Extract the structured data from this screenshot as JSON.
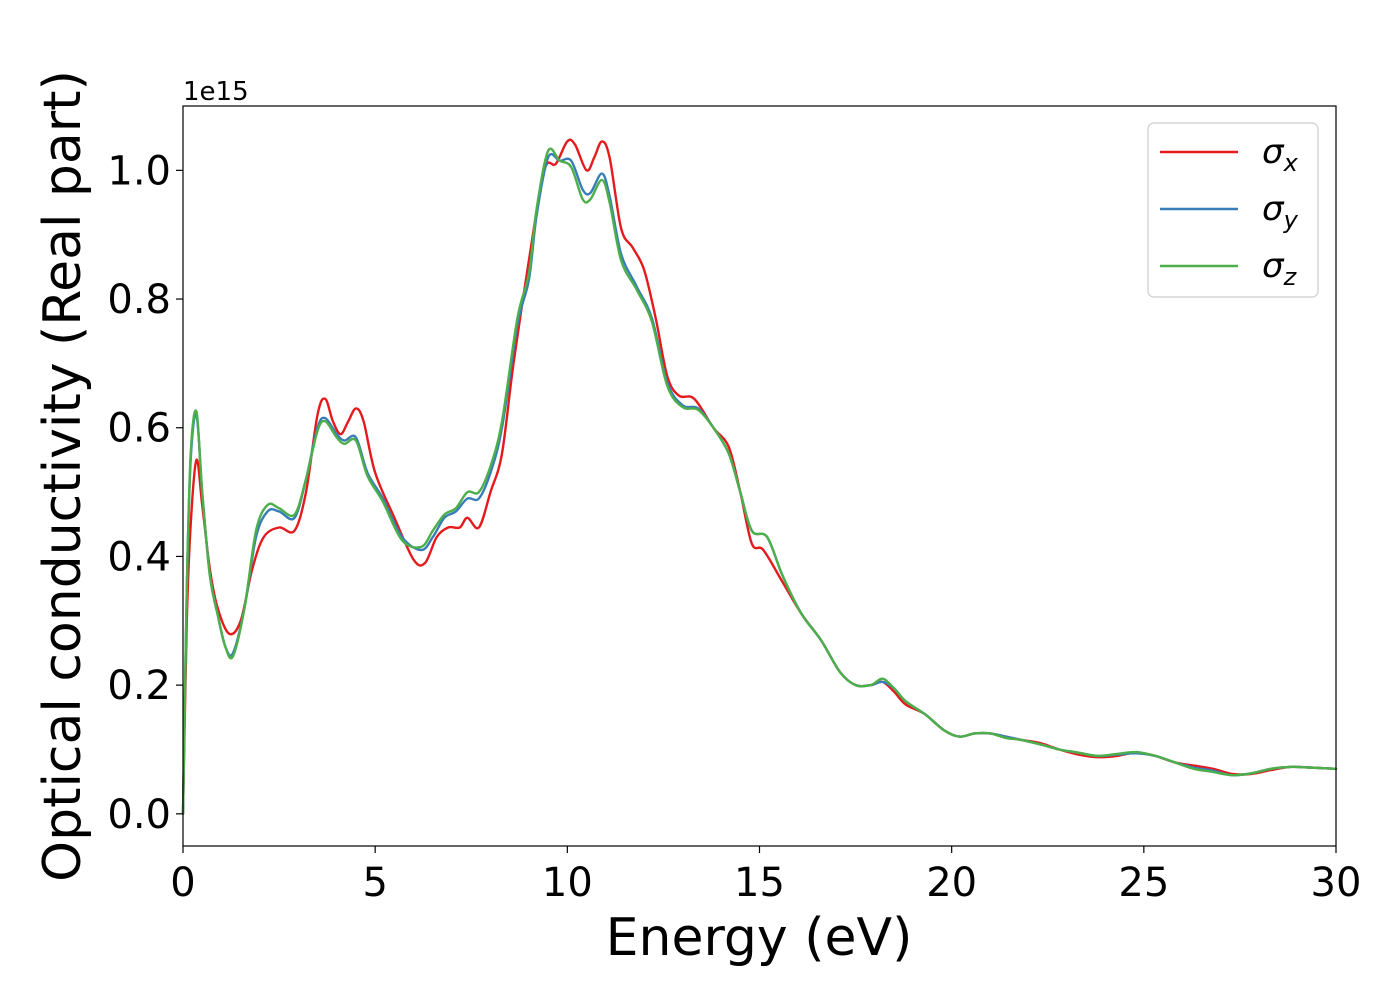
{
  "chart_data": {
    "type": "line",
    "xlabel": "Energy (eV)",
    "ylabel": "Optical conductivity (Real part)",
    "y_offset_label": "1e15",
    "xlim": [
      0,
      30
    ],
    "ylim": [
      -0.05,
      1.1
    ],
    "xticks": [
      0,
      5,
      10,
      15,
      20,
      25,
      30
    ],
    "yticks": [
      0.0,
      0.2,
      0.4,
      0.6,
      0.8,
      1.0
    ],
    "legend_position": "top-right",
    "grid": false,
    "series": [
      {
        "name": "σx",
        "symbol": "σ",
        "subscript": "x",
        "color": "#e41a1c",
        "points": [
          [
            0,
            0
          ],
          [
            0.1,
            0.3
          ],
          [
            0.2,
            0.45
          ],
          [
            0.35,
            0.55
          ],
          [
            0.5,
            0.48
          ],
          [
            0.7,
            0.38
          ],
          [
            0.9,
            0.32
          ],
          [
            1.2,
            0.28
          ],
          [
            1.5,
            0.3
          ],
          [
            1.8,
            0.38
          ],
          [
            2.1,
            0.43
          ],
          [
            2.5,
            0.445
          ],
          [
            2.9,
            0.44
          ],
          [
            3.2,
            0.5
          ],
          [
            3.5,
            0.62
          ],
          [
            3.7,
            0.645
          ],
          [
            3.9,
            0.61
          ],
          [
            4.1,
            0.59
          ],
          [
            4.3,
            0.61
          ],
          [
            4.5,
            0.63
          ],
          [
            4.7,
            0.61
          ],
          [
            5.0,
            0.53
          ],
          [
            5.5,
            0.46
          ],
          [
            6.0,
            0.395
          ],
          [
            6.3,
            0.39
          ],
          [
            6.6,
            0.43
          ],
          [
            6.9,
            0.445
          ],
          [
            7.2,
            0.445
          ],
          [
            7.4,
            0.46
          ],
          [
            7.7,
            0.445
          ],
          [
            8.0,
            0.5
          ],
          [
            8.3,
            0.56
          ],
          [
            8.6,
            0.7
          ],
          [
            9.0,
            0.86
          ],
          [
            9.4,
            1.0
          ],
          [
            9.7,
            1.01
          ],
          [
            10.0,
            1.045
          ],
          [
            10.2,
            1.04
          ],
          [
            10.5,
            1.0
          ],
          [
            10.7,
            1.02
          ],
          [
            10.9,
            1.045
          ],
          [
            11.1,
            1.02
          ],
          [
            11.4,
            0.91
          ],
          [
            11.7,
            0.88
          ],
          [
            12.0,
            0.845
          ],
          [
            12.3,
            0.77
          ],
          [
            12.6,
            0.68
          ],
          [
            12.9,
            0.65
          ],
          [
            13.3,
            0.645
          ],
          [
            13.8,
            0.6
          ],
          [
            14.2,
            0.57
          ],
          [
            14.5,
            0.5
          ],
          [
            14.8,
            0.42
          ],
          [
            15.1,
            0.41
          ],
          [
            15.6,
            0.36
          ],
          [
            16.1,
            0.31
          ],
          [
            16.6,
            0.27
          ],
          [
            17.1,
            0.22
          ],
          [
            17.5,
            0.2
          ],
          [
            17.9,
            0.2
          ],
          [
            18.2,
            0.205
          ],
          [
            18.5,
            0.19
          ],
          [
            18.8,
            0.17
          ],
          [
            19.3,
            0.155
          ],
          [
            19.8,
            0.13
          ],
          [
            20.2,
            0.12
          ],
          [
            20.6,
            0.125
          ],
          [
            21.0,
            0.125
          ],
          [
            21.4,
            0.12
          ],
          [
            21.8,
            0.115
          ],
          [
            22.3,
            0.11
          ],
          [
            22.8,
            0.1
          ],
          [
            23.3,
            0.092
          ],
          [
            23.8,
            0.088
          ],
          [
            24.3,
            0.09
          ],
          [
            24.8,
            0.095
          ],
          [
            25.3,
            0.09
          ],
          [
            25.8,
            0.08
          ],
          [
            26.3,
            0.075
          ],
          [
            26.8,
            0.07
          ],
          [
            27.3,
            0.062
          ],
          [
            27.8,
            0.062
          ],
          [
            28.3,
            0.068
          ],
          [
            28.8,
            0.073
          ],
          [
            29.3,
            0.072
          ],
          [
            30.0,
            0.07
          ]
        ]
      },
      {
        "name": "σy",
        "symbol": "σ",
        "subscript": "y",
        "color": "#377eb8",
        "points": [
          [
            0,
            0
          ],
          [
            0.1,
            0.35
          ],
          [
            0.2,
            0.55
          ],
          [
            0.35,
            0.62
          ],
          [
            0.5,
            0.5
          ],
          [
            0.7,
            0.37
          ],
          [
            0.9,
            0.31
          ],
          [
            1.1,
            0.26
          ],
          [
            1.3,
            0.25
          ],
          [
            1.6,
            0.32
          ],
          [
            1.9,
            0.43
          ],
          [
            2.2,
            0.47
          ],
          [
            2.5,
            0.47
          ],
          [
            2.9,
            0.46
          ],
          [
            3.2,
            0.52
          ],
          [
            3.5,
            0.6
          ],
          [
            3.7,
            0.615
          ],
          [
            4.0,
            0.59
          ],
          [
            4.2,
            0.58
          ],
          [
            4.5,
            0.585
          ],
          [
            4.8,
            0.53
          ],
          [
            5.2,
            0.49
          ],
          [
            5.7,
            0.43
          ],
          [
            6.2,
            0.41
          ],
          [
            6.5,
            0.43
          ],
          [
            6.8,
            0.46
          ],
          [
            7.1,
            0.47
          ],
          [
            7.4,
            0.49
          ],
          [
            7.7,
            0.49
          ],
          [
            8.0,
            0.53
          ],
          [
            8.3,
            0.6
          ],
          [
            8.7,
            0.76
          ],
          [
            9.0,
            0.83
          ],
          [
            9.2,
            0.93
          ],
          [
            9.5,
            1.02
          ],
          [
            9.8,
            1.015
          ],
          [
            10.1,
            1.015
          ],
          [
            10.4,
            0.97
          ],
          [
            10.6,
            0.965
          ],
          [
            10.9,
            0.995
          ],
          [
            11.1,
            0.96
          ],
          [
            11.4,
            0.87
          ],
          [
            11.8,
            0.82
          ],
          [
            12.2,
            0.77
          ],
          [
            12.6,
            0.67
          ],
          [
            13.0,
            0.635
          ],
          [
            13.4,
            0.63
          ],
          [
            13.8,
            0.6
          ],
          [
            14.2,
            0.56
          ],
          [
            14.5,
            0.5
          ],
          [
            14.8,
            0.44
          ],
          [
            15.2,
            0.43
          ],
          [
            15.6,
            0.37
          ],
          [
            16.1,
            0.31
          ],
          [
            16.6,
            0.27
          ],
          [
            17.1,
            0.22
          ],
          [
            17.5,
            0.2
          ],
          [
            17.9,
            0.2
          ],
          [
            18.2,
            0.205
          ],
          [
            18.5,
            0.195
          ],
          [
            18.8,
            0.175
          ],
          [
            19.3,
            0.155
          ],
          [
            19.8,
            0.13
          ],
          [
            20.2,
            0.12
          ],
          [
            20.6,
            0.125
          ],
          [
            21.0,
            0.125
          ],
          [
            21.4,
            0.12
          ],
          [
            21.8,
            0.115
          ],
          [
            22.3,
            0.108
          ],
          [
            22.8,
            0.1
          ],
          [
            23.3,
            0.095
          ],
          [
            23.8,
            0.09
          ],
          [
            24.3,
            0.092
          ],
          [
            24.8,
            0.094
          ],
          [
            25.3,
            0.09
          ],
          [
            25.8,
            0.08
          ],
          [
            26.3,
            0.072
          ],
          [
            26.8,
            0.067
          ],
          [
            27.3,
            0.06
          ],
          [
            27.8,
            0.063
          ],
          [
            28.3,
            0.07
          ],
          [
            28.8,
            0.073
          ],
          [
            29.3,
            0.072
          ],
          [
            30.0,
            0.07
          ]
        ]
      },
      {
        "name": "σz",
        "symbol": "σ",
        "subscript": "z",
        "color": "#4daf4a",
        "points": [
          [
            0,
            0
          ],
          [
            0.1,
            0.35
          ],
          [
            0.2,
            0.56
          ],
          [
            0.35,
            0.625
          ],
          [
            0.5,
            0.5
          ],
          [
            0.7,
            0.37
          ],
          [
            0.9,
            0.31
          ],
          [
            1.1,
            0.26
          ],
          [
            1.3,
            0.245
          ],
          [
            1.6,
            0.32
          ],
          [
            1.9,
            0.44
          ],
          [
            2.2,
            0.48
          ],
          [
            2.5,
            0.475
          ],
          [
            2.9,
            0.465
          ],
          [
            3.2,
            0.52
          ],
          [
            3.5,
            0.595
          ],
          [
            3.7,
            0.61
          ],
          [
            4.0,
            0.585
          ],
          [
            4.2,
            0.575
          ],
          [
            4.5,
            0.58
          ],
          [
            4.8,
            0.525
          ],
          [
            5.2,
            0.485
          ],
          [
            5.7,
            0.425
          ],
          [
            6.2,
            0.415
          ],
          [
            6.5,
            0.44
          ],
          [
            6.8,
            0.465
          ],
          [
            7.1,
            0.475
          ],
          [
            7.4,
            0.5
          ],
          [
            7.7,
            0.5
          ],
          [
            8.0,
            0.54
          ],
          [
            8.3,
            0.61
          ],
          [
            8.7,
            0.77
          ],
          [
            9.0,
            0.84
          ],
          [
            9.2,
            0.94
          ],
          [
            9.5,
            1.03
          ],
          [
            9.8,
            1.015
          ],
          [
            10.1,
            1.005
          ],
          [
            10.4,
            0.955
          ],
          [
            10.6,
            0.955
          ],
          [
            10.9,
            0.985
          ],
          [
            11.1,
            0.95
          ],
          [
            11.4,
            0.86
          ],
          [
            11.8,
            0.815
          ],
          [
            12.2,
            0.765
          ],
          [
            12.6,
            0.665
          ],
          [
            13.0,
            0.632
          ],
          [
            13.4,
            0.628
          ],
          [
            13.8,
            0.6
          ],
          [
            14.2,
            0.56
          ],
          [
            14.5,
            0.5
          ],
          [
            14.8,
            0.44
          ],
          [
            15.2,
            0.43
          ],
          [
            15.6,
            0.37
          ],
          [
            16.1,
            0.31
          ],
          [
            16.6,
            0.27
          ],
          [
            17.1,
            0.22
          ],
          [
            17.5,
            0.2
          ],
          [
            17.9,
            0.2
          ],
          [
            18.2,
            0.21
          ],
          [
            18.5,
            0.195
          ],
          [
            18.8,
            0.175
          ],
          [
            19.3,
            0.155
          ],
          [
            19.8,
            0.13
          ],
          [
            20.2,
            0.12
          ],
          [
            20.6,
            0.125
          ],
          [
            21.0,
            0.125
          ],
          [
            21.4,
            0.118
          ],
          [
            21.8,
            0.115
          ],
          [
            22.3,
            0.108
          ],
          [
            22.8,
            0.1
          ],
          [
            23.3,
            0.095
          ],
          [
            23.8,
            0.09
          ],
          [
            24.3,
            0.093
          ],
          [
            24.8,
            0.096
          ],
          [
            25.3,
            0.09
          ],
          [
            25.8,
            0.08
          ],
          [
            26.3,
            0.07
          ],
          [
            26.8,
            0.065
          ],
          [
            27.3,
            0.06
          ],
          [
            27.8,
            0.063
          ],
          [
            28.3,
            0.07
          ],
          [
            28.8,
            0.073
          ],
          [
            29.3,
            0.072
          ],
          [
            30.0,
            0.07
          ]
        ]
      }
    ]
  }
}
